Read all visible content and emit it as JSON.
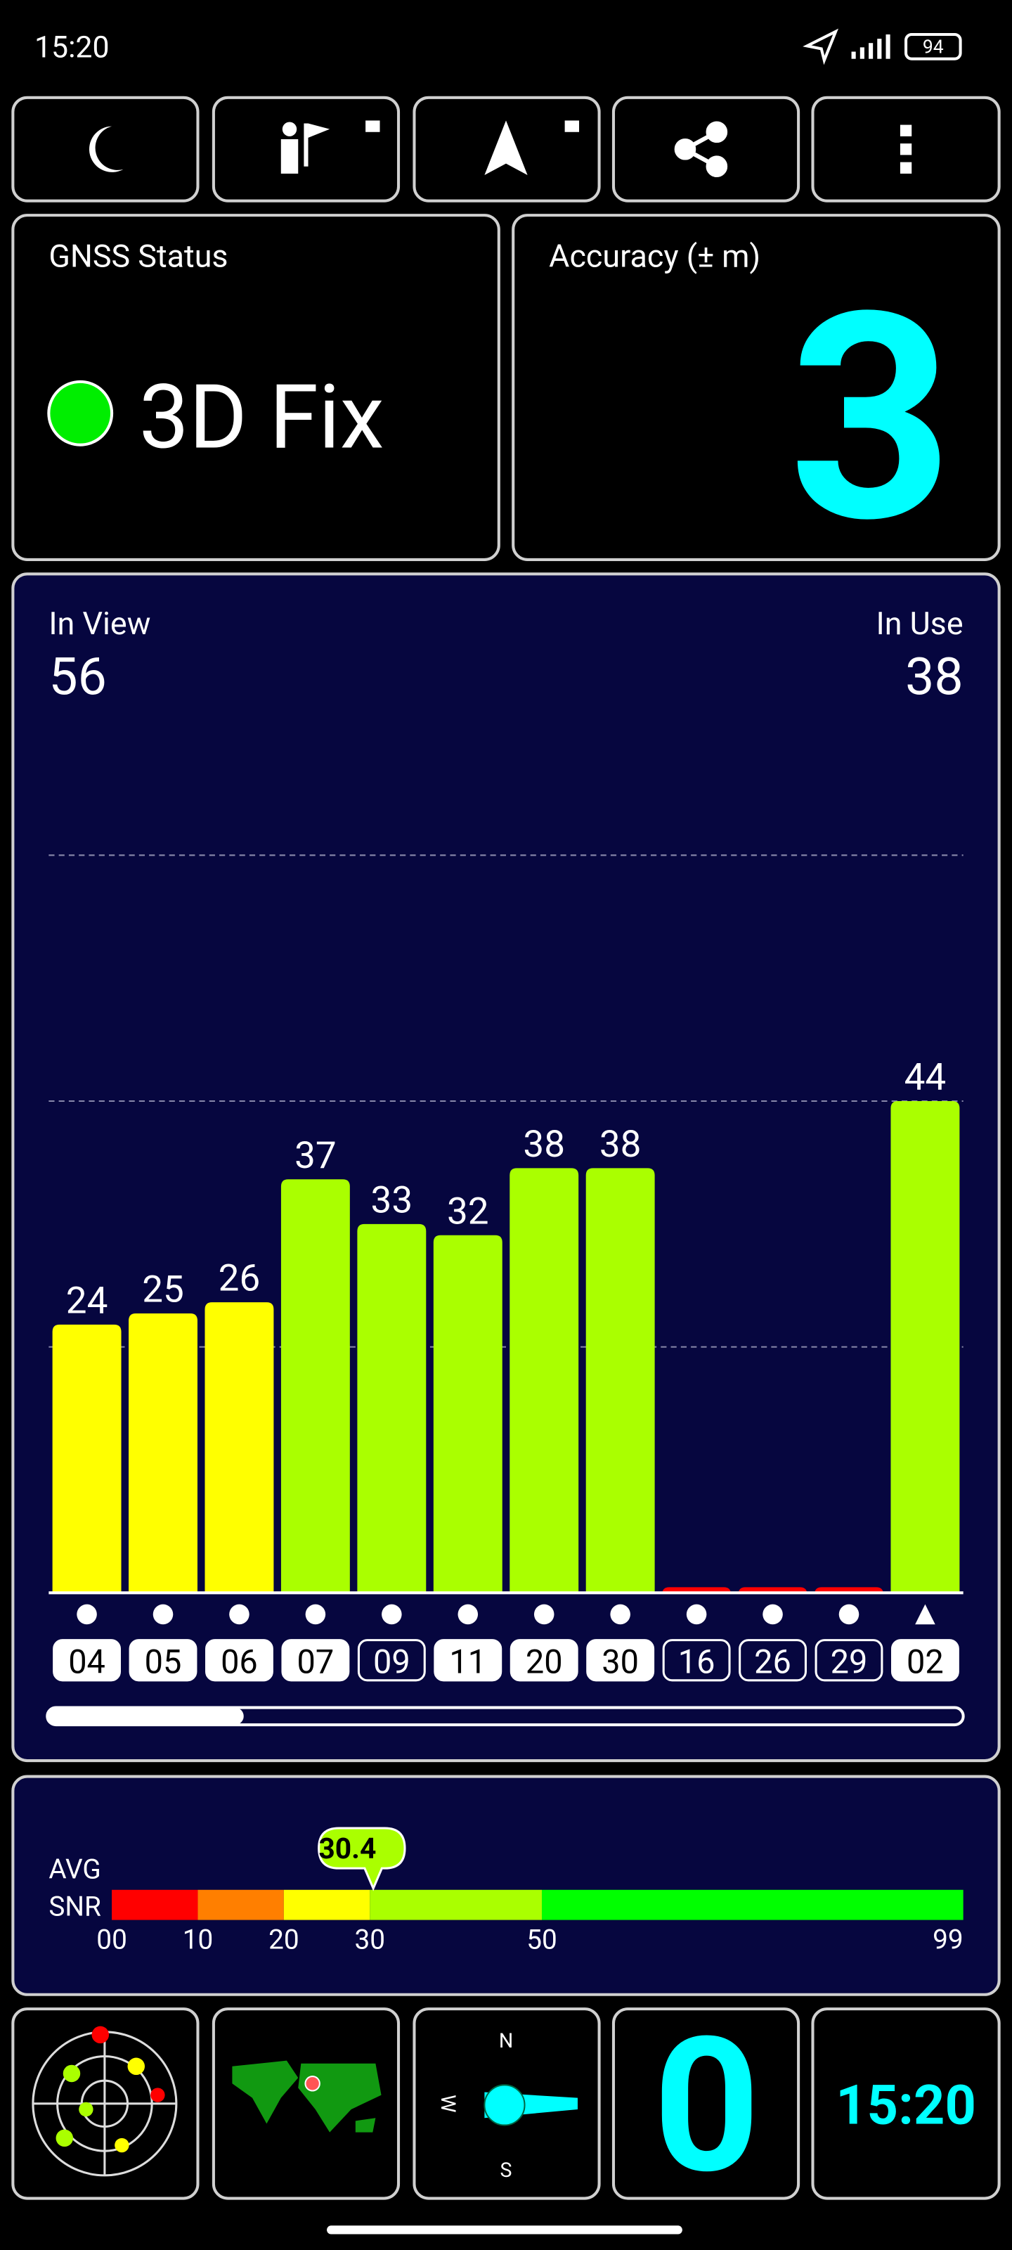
{
  "status_bar": {
    "time": "15:20",
    "battery": "94"
  },
  "gnss_status": {
    "label": "GNSS Status",
    "fix": "3D Fix"
  },
  "accuracy": {
    "label": "Accuracy (± m)",
    "value": 3
  },
  "chart_data": {
    "type": "bar",
    "in_view": {
      "label": "In View",
      "value": 56
    },
    "in_use": {
      "label": "In Use",
      "value": 38
    },
    "categories": [
      "04",
      "05",
      "06",
      "07",
      "09",
      "11",
      "20",
      "30",
      "16",
      "26",
      "29",
      "02"
    ],
    "values": [
      24,
      25,
      26,
      37,
      33,
      32,
      38,
      38,
      0.5,
      0.5,
      0.5,
      44
    ],
    "labeled": [
      true,
      true,
      true,
      true,
      true,
      true,
      true,
      true,
      false,
      false,
      false,
      true
    ],
    "colors": [
      "#ffff00",
      "#ffff00",
      "#ffff00",
      "#aaff00",
      "#aaff00",
      "#aaff00",
      "#aaff00",
      "#aaff00",
      "#ff0000",
      "#ff0000",
      "#ff0000",
      "#aaff00"
    ],
    "used": [
      true,
      true,
      true,
      true,
      false,
      true,
      true,
      true,
      false,
      false,
      false,
      true
    ],
    "markers": [
      "circle",
      "circle",
      "circle",
      "circle",
      "circle",
      "circle",
      "circle",
      "circle",
      "circle",
      "circle",
      "circle",
      "triangle"
    ],
    "ylim": [
      0,
      66
    ],
    "yticks": [
      22,
      44,
      66
    ],
    "grid": true
  },
  "avg_snr": {
    "label_top": "AVG",
    "label_bottom": "SNR",
    "value": 30.4,
    "xlim": [
      0,
      99
    ],
    "xticks": [
      {
        "value": 0,
        "label": "00"
      },
      10,
      20,
      30,
      50,
      99
    ],
    "segment_colors": [
      "#ff0000",
      "#ff7f00",
      "#ffff00",
      "#aaff00",
      "#00ff00"
    ]
  },
  "tiles": {
    "north": "N",
    "south": "S",
    "west": "W",
    "count": 0,
    "clock": "15:20"
  }
}
